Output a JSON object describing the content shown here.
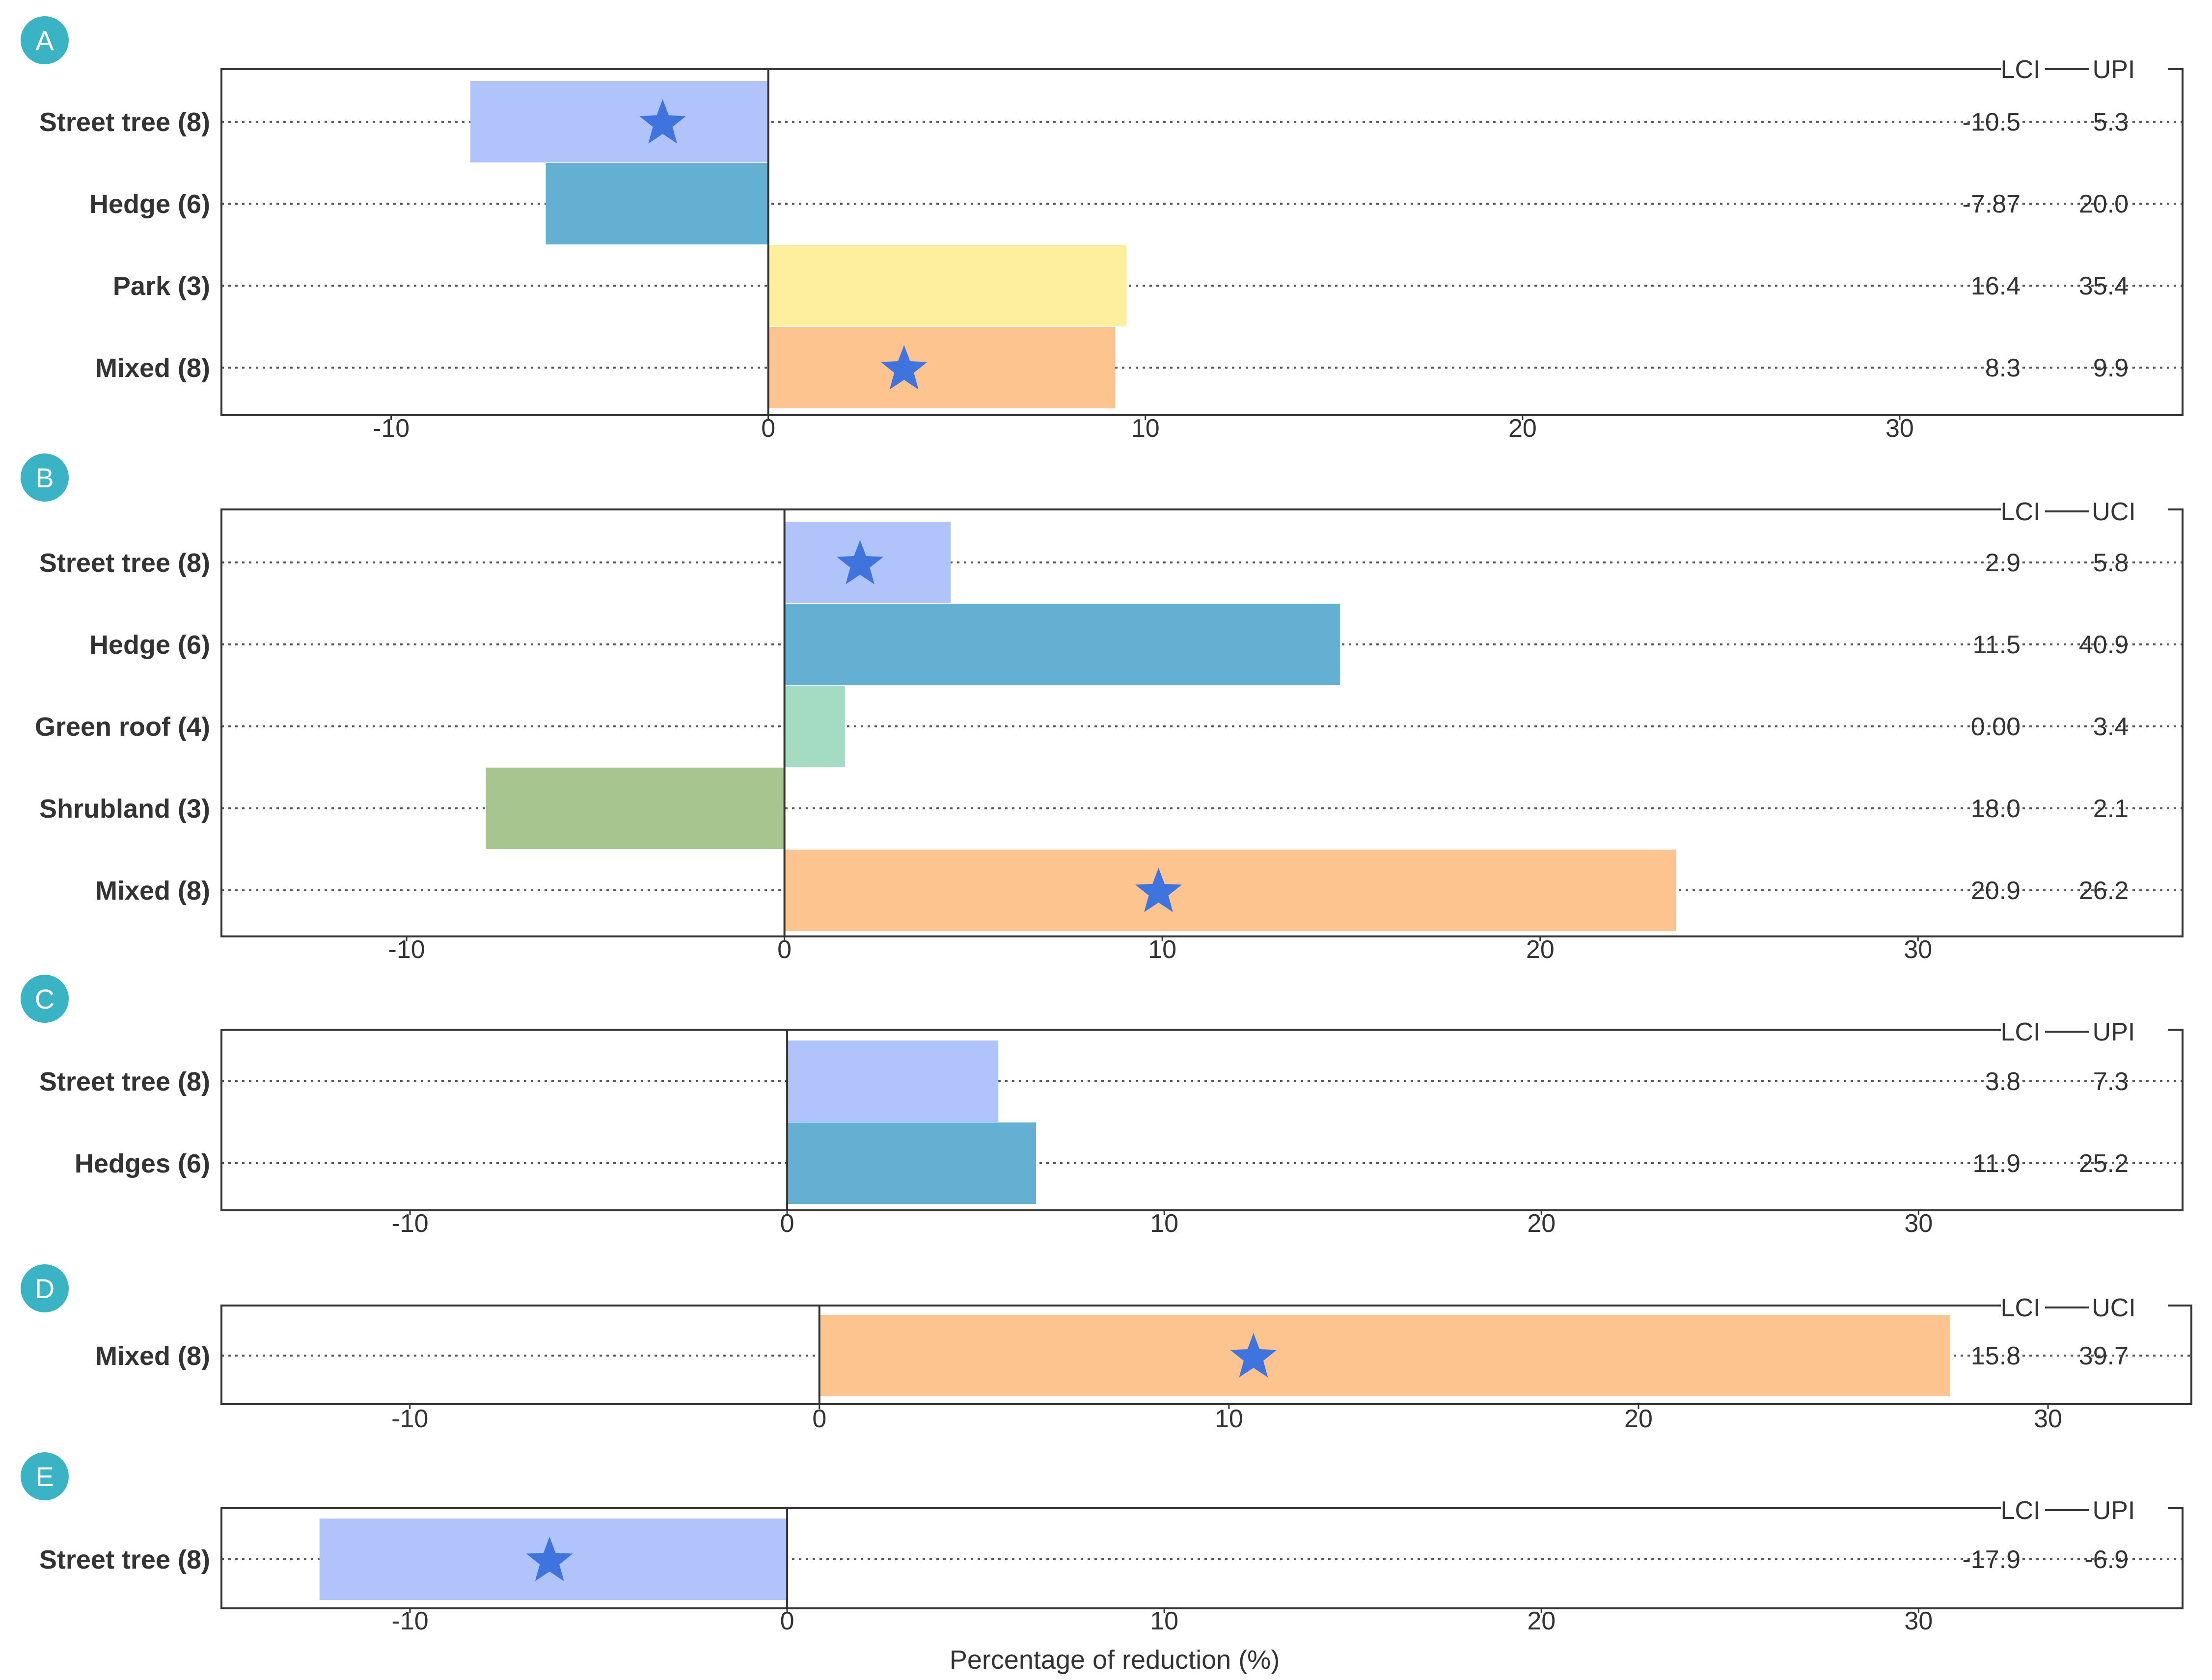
{
  "colors": {
    "street_tree": "#b0c4fb",
    "hedge": "#63b0d3",
    "park": "#fdef9d",
    "mixed": "#fdc490",
    "green_roof": "#a3dbc3",
    "shrubland": "#a7c68f",
    "star": "#3f74de",
    "badge": "#3ab3c4",
    "frame": "#333333"
  },
  "icons": {
    "marker": "star-icon"
  },
  "chart_data": [
    {
      "type": "bar",
      "orientation": "horizontal",
      "panel": "A",
      "xlim": [
        -14.5,
        37.5
      ],
      "x_ticks": [
        "-10",
        "0",
        "10",
        "20",
        "30"
      ],
      "ci_headers": [
        "LCI",
        "UPI"
      ],
      "rows": [
        {
          "label": "Street tree (8)",
          "value": -7.9,
          "color_key": "street_tree",
          "star": -2.8,
          "lci": "-10.5",
          "uci": "5.3"
        },
        {
          "label": "Hedge (6)",
          "value": -5.9,
          "color_key": "hedge",
          "star": null,
          "lci": "-7.87",
          "uci": "20.0"
        },
        {
          "label": "Park (3)",
          "value": 9.5,
          "color_key": "park",
          "star": null,
          "lci": "16.4",
          "uci": "35.4"
        },
        {
          "label": "Mixed (8)",
          "value": 9.2,
          "color_key": "mixed",
          "star": 3.6,
          "lci": "8.3",
          "uci": "9.9"
        }
      ]
    },
    {
      "type": "bar",
      "orientation": "horizontal",
      "panel": "B",
      "xlim": [
        -14.9,
        37.0
      ],
      "x_ticks": [
        "-10",
        "0",
        "10",
        "20",
        "30"
      ],
      "ci_headers": [
        "LCI",
        "UCI"
      ],
      "rows": [
        {
          "label": "Street tree (8)",
          "value": 4.4,
          "color_key": "street_tree",
          "star": 2.0,
          "lci": "2.9",
          "uci": "5.8"
        },
        {
          "label": "Hedge (6)",
          "value": 14.7,
          "color_key": "hedge",
          "star": null,
          "lci": "11.5",
          "uci": "40.9"
        },
        {
          "label": "Green roof (4)",
          "value": 1.6,
          "color_key": "green_roof",
          "star": null,
          "lci": "0.00",
          "uci": "3.4"
        },
        {
          "label": "Shrubland (3)",
          "value": -7.9,
          "color_key": "shrubland",
          "star": null,
          "lci": "18.0",
          "uci": "2.1"
        },
        {
          "label": "Mixed (8)",
          "value": 23.6,
          "color_key": "mixed",
          "star": 9.9,
          "lci": "20.9",
          "uci": "26.2"
        }
      ]
    },
    {
      "type": "bar",
      "orientation": "horizontal",
      "panel": "C",
      "xlim": [
        -15.0,
        37.0
      ],
      "x_ticks": [
        "-10",
        "0",
        "10",
        "20",
        "30"
      ],
      "ci_headers": [
        "LCI",
        "UPI"
      ],
      "rows": [
        {
          "label": "Street tree (8)",
          "value": 5.6,
          "color_key": "street_tree",
          "star": null,
          "lci": "3.8",
          "uci": "7.3"
        },
        {
          "label": "Hedges (6)",
          "value": 6.6,
          "color_key": "hedge",
          "star": null,
          "lci": "11.9",
          "uci": "25.2"
        }
      ]
    },
    {
      "type": "bar",
      "orientation": "horizontal",
      "panel": "D",
      "xlim": [
        -14.6,
        33.5
      ],
      "x_ticks": [
        "-10",
        "0",
        "10",
        "20",
        "30"
      ],
      "ci_headers": [
        "LCI",
        "UCI"
      ],
      "rows": [
        {
          "label": "Mixed (8)",
          "value": 27.6,
          "color_key": "mixed",
          "star": 10.6,
          "bar_start": 0.0,
          "lci": "15.8",
          "uci": "39.7"
        }
      ]
    },
    {
      "type": "bar",
      "orientation": "horizontal",
      "panel": "E",
      "xlim": [
        -15.0,
        37.0
      ],
      "x_ticks": [
        "-10",
        "0",
        "10",
        "20",
        "30"
      ],
      "ci_headers": [
        "LCI",
        "UPI"
      ],
      "xlabel": "Percentage of reduction (%)",
      "rows": [
        {
          "label": "Street tree (8)",
          "value": -12.4,
          "color_key": "street_tree",
          "star": -6.3,
          "lci": "-17.9",
          "uci": "-6.9"
        }
      ]
    }
  ]
}
